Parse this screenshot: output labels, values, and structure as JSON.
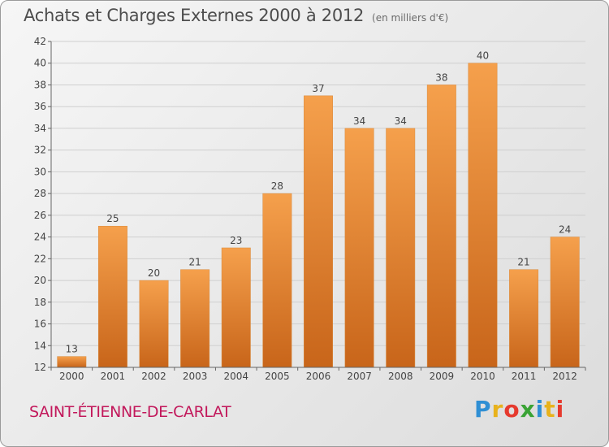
{
  "chart_data": {
    "type": "bar",
    "title": "Achats et Charges Externes 2000 à 2012",
    "subtitle": "(en milliers d'€)",
    "categories": [
      "2000",
      "2001",
      "2002",
      "2003",
      "2004",
      "2005",
      "2006",
      "2007",
      "2008",
      "2009",
      "2010",
      "2011",
      "2012"
    ],
    "values": [
      13,
      25,
      20,
      21,
      23,
      28,
      37,
      34,
      34,
      38,
      40,
      21,
      24
    ],
    "ylim": [
      12,
      42
    ],
    "yticks": [
      12,
      14,
      16,
      18,
      20,
      22,
      24,
      26,
      28,
      30,
      32,
      34,
      36,
      38,
      40,
      42
    ],
    "grid": true,
    "bar_color_top": "#f5a04c",
    "bar_color_bottom": "#c8651a"
  },
  "footer": {
    "city": "SAINT-ÉTIENNE-DE-CARLAT",
    "logo_letters": [
      "P",
      "r",
      "o",
      "x",
      "i",
      "t",
      "i"
    ],
    "logo_colors": [
      "#2f8fd4",
      "#e8b21c",
      "#e63a2e",
      "#3aa335",
      "#2f8fd4",
      "#e8b21c",
      "#e63a2e"
    ]
  }
}
